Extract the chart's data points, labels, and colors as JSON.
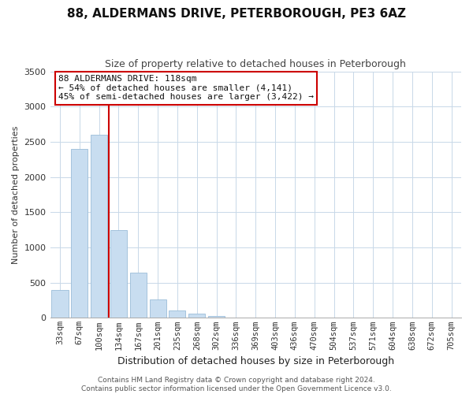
{
  "title": "88, ALDERMANS DRIVE, PETERBOROUGH, PE3 6AZ",
  "subtitle": "Size of property relative to detached houses in Peterborough",
  "xlabel": "Distribution of detached houses by size in Peterborough",
  "ylabel": "Number of detached properties",
  "bar_labels": [
    "33sqm",
    "67sqm",
    "100sqm",
    "134sqm",
    "167sqm",
    "201sqm",
    "235sqm",
    "268sqm",
    "302sqm",
    "336sqm",
    "369sqm",
    "403sqm",
    "436sqm",
    "470sqm",
    "504sqm",
    "537sqm",
    "571sqm",
    "604sqm",
    "638sqm",
    "672sqm",
    "705sqm"
  ],
  "bar_values": [
    400,
    2400,
    2600,
    1250,
    640,
    260,
    105,
    55,
    30,
    0,
    0,
    0,
    0,
    0,
    0,
    0,
    0,
    0,
    0,
    0,
    0
  ],
  "bar_color": "#c8ddf0",
  "bar_edge_color": "#9bbcd8",
  "vline_x_idx": 2,
  "vline_color": "#cc0000",
  "ylim": [
    0,
    3500
  ],
  "yticks": [
    0,
    500,
    1000,
    1500,
    2000,
    2500,
    3000,
    3500
  ],
  "annotation_line1": "88 ALDERMANS DRIVE: 118sqm",
  "annotation_line2": "← 54% of detached houses are smaller (4,141)",
  "annotation_line3": "45% of semi-detached houses are larger (3,422) →",
  "annotation_box_edge": "#cc0000",
  "footer_line1": "Contains HM Land Registry data © Crown copyright and database right 2024.",
  "footer_line2": "Contains public sector information licensed under the Open Government Licence v3.0.",
  "background_color": "#ffffff",
  "grid_color": "#c8d8e8",
  "title_fontsize": 11,
  "subtitle_fontsize": 9,
  "xlabel_fontsize": 9,
  "ylabel_fontsize": 8,
  "tick_fontsize": 7.5,
  "annotation_fontsize": 8,
  "footer_fontsize": 6.5
}
